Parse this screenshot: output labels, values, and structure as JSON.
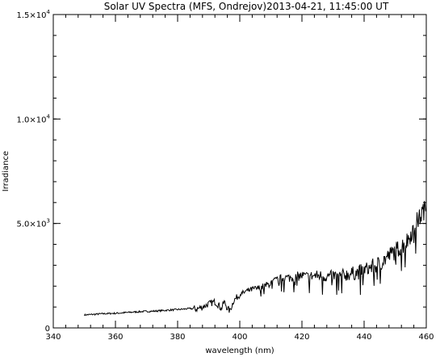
{
  "chart_data": {
    "type": "line",
    "title": "Solar UV Spectra (MFS, Ondrejov)2013-04-21, 11:45:00 UT",
    "xlabel": "wavelength (nm)",
    "ylabel": "Irradiance",
    "xlim": [
      340,
      460
    ],
    "ylim": [
      0,
      15000
    ],
    "x_ticks": [
      340,
      360,
      380,
      400,
      420,
      440,
      460
    ],
    "x_minor_step": 4,
    "y_ticks": [
      {
        "value": 0,
        "mantissa": "0",
        "exp": ""
      },
      {
        "value": 5000,
        "mantissa": "5.0×10",
        "exp": "3"
      },
      {
        "value": 10000,
        "mantissa": "1.0×10",
        "exp": "4"
      },
      {
        "value": 15000,
        "mantissa": "1.5×10",
        "exp": "4"
      }
    ],
    "y_minor_step": 1000,
    "grid": false,
    "series": [
      {
        "x": [
          350,
          352,
          354,
          356,
          358,
          360,
          362,
          364,
          366,
          368,
          370,
          372,
          374,
          376,
          378,
          380,
          382,
          384,
          386,
          388,
          390,
          392,
          393.5,
          394,
          395,
          396,
          396.8,
          397.5,
          398,
          399,
          400,
          402,
          404,
          406,
          408,
          410,
          412,
          414,
          416,
          418,
          420,
          422,
          424,
          426,
          428,
          430,
          432,
          434,
          436,
          438,
          440,
          442,
          444,
          446,
          448,
          450,
          452,
          454,
          455,
          456,
          457,
          458,
          459,
          460
        ],
        "y": [
          620,
          640,
          660,
          680,
          690,
          700,
          720,
          740,
          760,
          780,
          790,
          800,
          820,
          840,
          860,
          880,
          900,
          930,
          900,
          1000,
          1150,
          1250,
          1050,
          900,
          1250,
          950,
          800,
          1100,
          1300,
          1450,
          1600,
          1750,
          1850,
          1900,
          2000,
          2150,
          2300,
          2400,
          2400,
          2450,
          2500,
          2450,
          2500,
          2500,
          2450,
          2500,
          2450,
          2550,
          2600,
          2650,
          2750,
          2900,
          3000,
          3200,
          3450,
          3700,
          3900,
          4200,
          4500,
          4800,
          5100,
          5300,
          5600,
          5700
        ]
      }
    ]
  }
}
